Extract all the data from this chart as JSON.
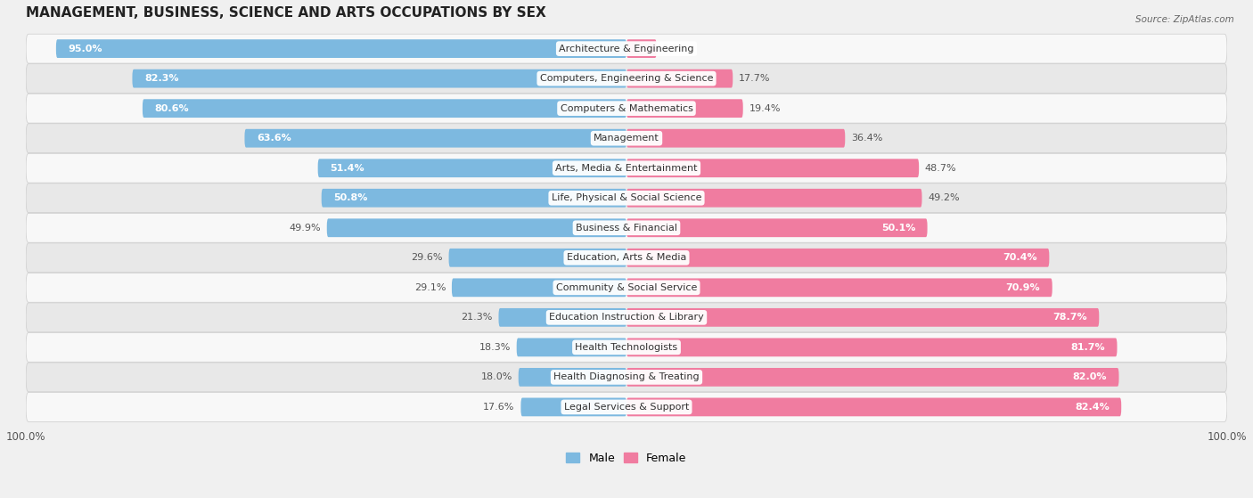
{
  "title": "MANAGEMENT, BUSINESS, SCIENCE AND ARTS OCCUPATIONS BY SEX",
  "source": "Source: ZipAtlas.com",
  "categories": [
    "Architecture & Engineering",
    "Computers, Engineering & Science",
    "Computers & Mathematics",
    "Management",
    "Arts, Media & Entertainment",
    "Life, Physical & Social Science",
    "Business & Financial",
    "Education, Arts & Media",
    "Community & Social Service",
    "Education Instruction & Library",
    "Health Technologists",
    "Health Diagnosing & Treating",
    "Legal Services & Support"
  ],
  "male_pct": [
    95.0,
    82.3,
    80.6,
    63.6,
    51.4,
    50.8,
    49.9,
    29.6,
    29.1,
    21.3,
    18.3,
    18.0,
    17.6
  ],
  "female_pct": [
    5.0,
    17.7,
    19.4,
    36.4,
    48.7,
    49.2,
    50.1,
    70.4,
    70.9,
    78.7,
    81.7,
    82.0,
    82.4
  ],
  "male_color": "#7db9e0",
  "female_color": "#f07ca0",
  "bg_color": "#f0f0f0",
  "row_bg_even": "#e8e8e8",
  "row_bg_odd": "#f8f8f8",
  "title_fontsize": 11,
  "label_fontsize": 8,
  "bar_height": 0.62,
  "figsize": [
    14.06,
    5.59
  ]
}
